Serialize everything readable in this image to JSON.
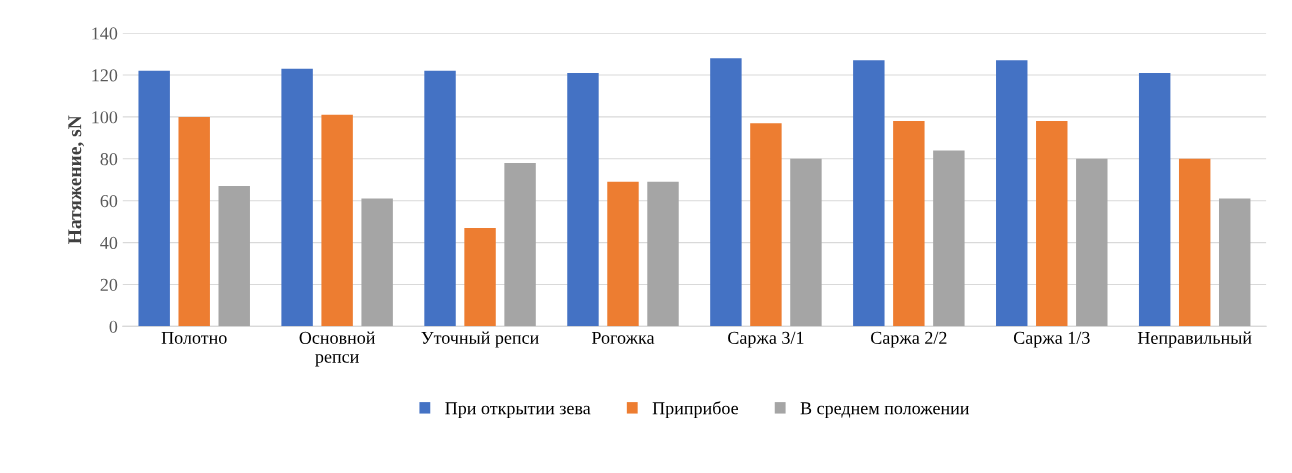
{
  "chart_data": {
    "type": "bar",
    "ylabel": "Натяжение, sN",
    "categories": [
      "Полотно",
      "Основной\nрепси",
      "Уточный репси",
      "Рогожка",
      "Саржа 3/1",
      "Саржа 2/2",
      "Саржа 1/3",
      "Неправильный"
    ],
    "series": [
      {
        "name": "При открытии зева",
        "color": "#4472c4",
        "values": [
          122,
          123,
          122,
          121,
          128,
          127,
          127,
          121
        ]
      },
      {
        "name": "Приприбое",
        "color": "#ed7d31",
        "values": [
          100,
          101,
          47,
          69,
          97,
          98,
          98,
          80
        ]
      },
      {
        "name": "В среднем положении",
        "color": "#a5a5a5",
        "values": [
          67,
          61,
          78,
          69,
          80,
          84,
          80,
          61
        ]
      }
    ],
    "ylim": [
      0,
      140
    ],
    "yticks": [
      0,
      20,
      40,
      60,
      80,
      100,
      120,
      140
    ],
    "grid": "y",
    "legend": "bottom"
  }
}
